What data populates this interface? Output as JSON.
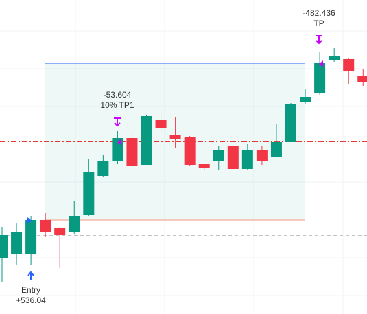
{
  "chart_data": {
    "type": "candlestick",
    "open": [
      82,
      87,
      87,
      137,
      125,
      119,
      144,
      201,
      222,
      256,
      217,
      283,
      261,
      257,
      219,
      222,
      245,
      211,
      239,
      229,
      250,
      309,
      321,
      369,
      371,
      347
    ],
    "high": [
      127,
      132,
      142,
      147,
      127,
      164,
      225,
      232,
      267,
      262,
      289,
      295,
      287,
      259,
      219,
      245,
      245,
      247,
      245,
      277,
      307,
      327,
      382,
      387,
      373,
      357
    ],
    "low": [
      47,
      72,
      72,
      112,
      67,
      117,
      142,
      199,
      219,
      215,
      217,
      267,
      242,
      215,
      209,
      209,
      211,
      209,
      217,
      228,
      250,
      305,
      319,
      367,
      335,
      332
    ],
    "close": [
      115,
      120,
      137,
      120,
      115,
      142,
      207,
      222,
      256,
      216,
      288,
      271,
      255,
      217,
      212,
      239,
      211,
      239,
      222,
      250,
      305,
      316,
      365,
      375,
      353,
      337
    ],
    "up_color": "#089981",
    "down_color": "#f23645",
    "ylim": [
      0,
      457
    ],
    "target_level": 365,
    "stop_level": 137,
    "mark_level": 251,
    "entry_level": 114,
    "annotations": {
      "tp1_value": "-53.604",
      "tp1_label": "10% TP1",
      "tp_value": "-482.436",
      "tp_label": "TP",
      "entry_label": "Entry",
      "entry_value": "+536.04"
    }
  }
}
